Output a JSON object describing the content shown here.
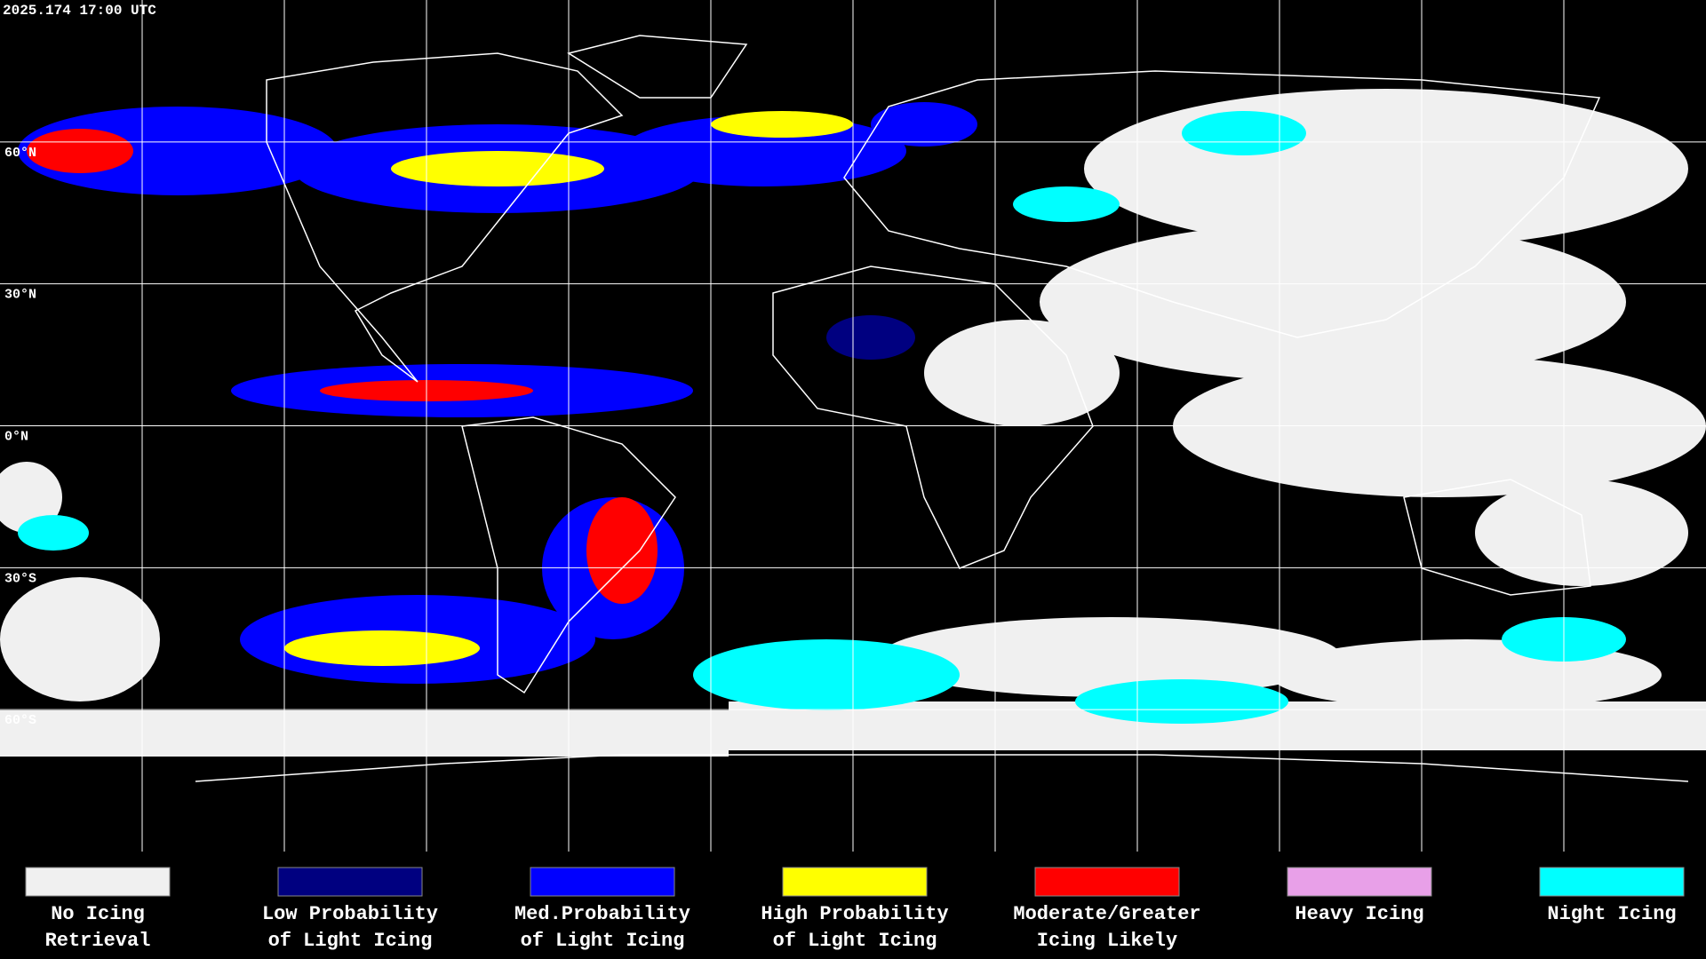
{
  "timestamp": "2025.174 17:00 UTC",
  "latitude_labels": [
    "60°N",
    "30°N",
    "0°N",
    "30°S",
    "60°S"
  ],
  "legend": [
    {
      "lines": [
        "No Icing",
        "Retrieval"
      ],
      "color": "#f0f0f0"
    },
    {
      "lines": [
        "Low Probability",
        "of Light Icing"
      ],
      "color": "#000080"
    },
    {
      "lines": [
        "Med.Probability",
        "of Light Icing"
      ],
      "color": "#0000ff"
    },
    {
      "lines": [
        "High Probability",
        "of Light Icing"
      ],
      "color": "#ffff00"
    },
    {
      "lines": [
        "Moderate/Greater",
        "Icing Likely"
      ],
      "color": "#ff0000"
    },
    {
      "lines": [
        "Heavy Icing"
      ],
      "color": "#e8a0e8"
    },
    {
      "lines": [
        "Night Icing"
      ],
      "color": "#00ffff"
    }
  ]
}
